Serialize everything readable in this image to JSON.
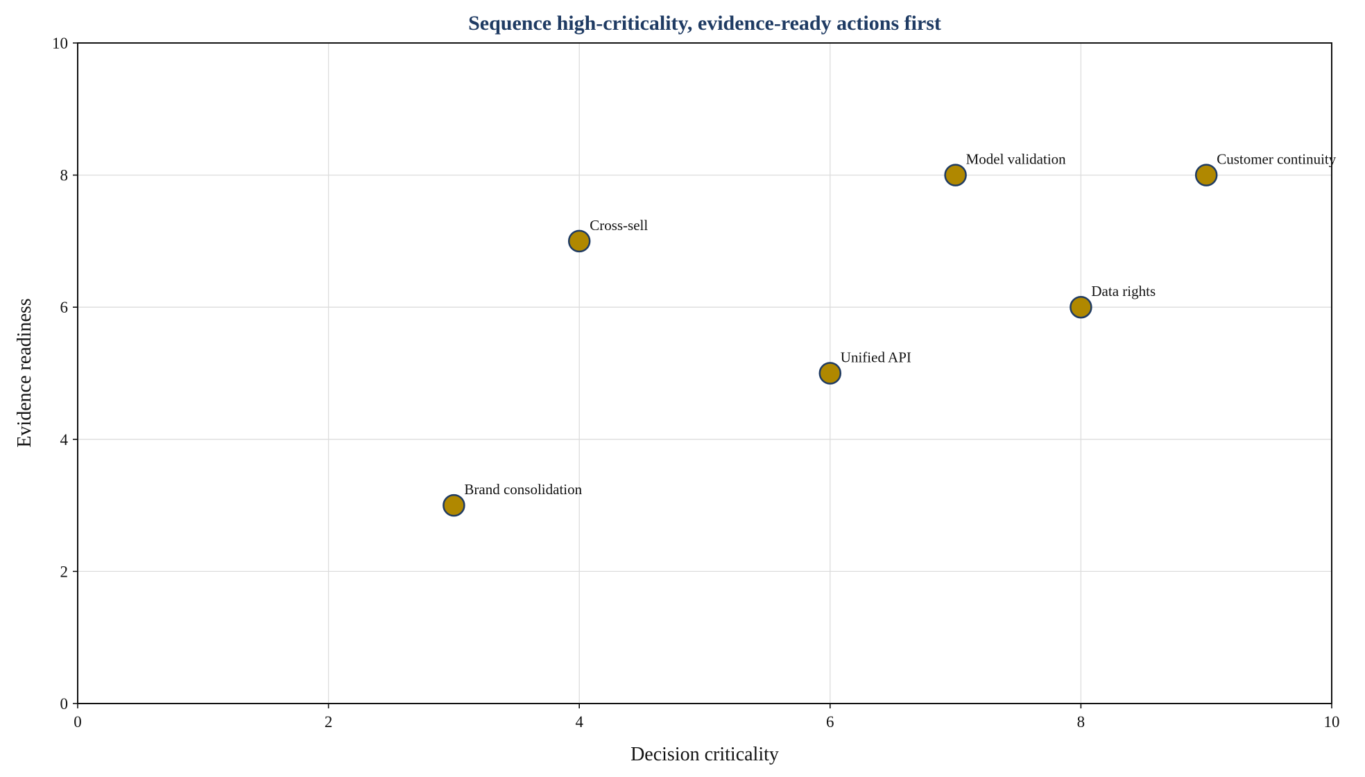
{
  "chart_data": {
    "type": "scatter",
    "title": "Sequence high-criticality, evidence-ready actions first",
    "xlabel": "Decision criticality",
    "ylabel": "Evidence readiness",
    "xlim": [
      0,
      10
    ],
    "ylim": [
      0,
      10
    ],
    "xticks": [
      0,
      2,
      4,
      6,
      8,
      10
    ],
    "yticks": [
      0,
      2,
      4,
      6,
      8,
      10
    ],
    "grid": true,
    "colors": {
      "title": "#1f3b63",
      "point_fill": "#b08800",
      "point_edge": "#1f3b63"
    },
    "points": [
      {
        "label": "Brand consolidation",
        "x": 3,
        "y": 3
      },
      {
        "label": "Cross-sell",
        "x": 4,
        "y": 7
      },
      {
        "label": "Unified API",
        "x": 6,
        "y": 5
      },
      {
        "label": "Model validation",
        "x": 7,
        "y": 8
      },
      {
        "label": "Data rights",
        "x": 8,
        "y": 6
      },
      {
        "label": "Customer continuity",
        "x": 9,
        "y": 8
      }
    ]
  }
}
